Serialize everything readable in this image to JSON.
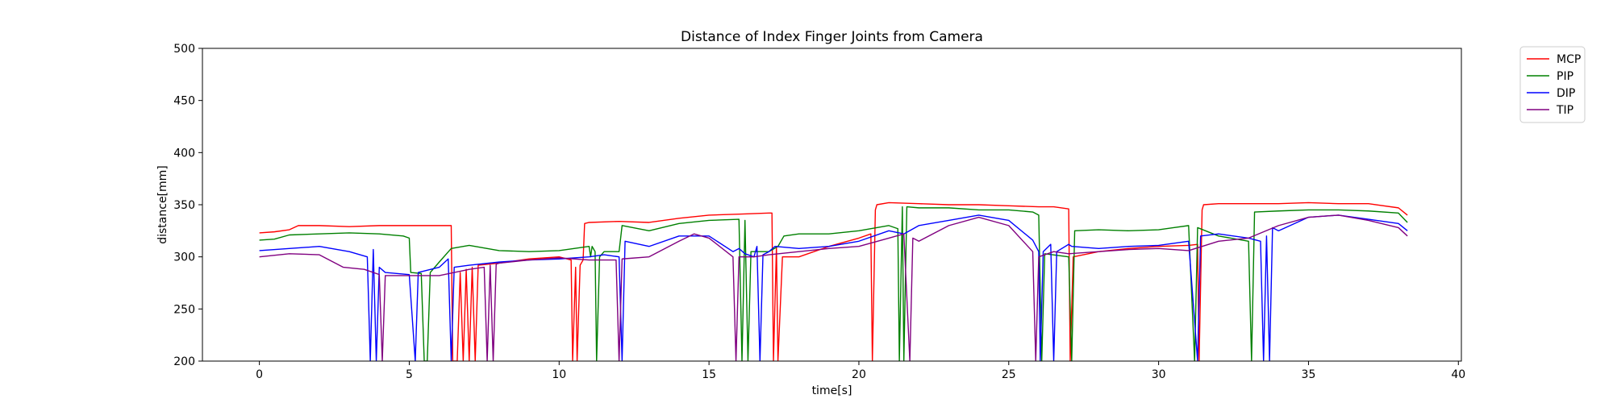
{
  "chart_data": {
    "type": "line",
    "title": "Distance of Index Finger Joints from Camera",
    "xlabel": "time[s]",
    "ylabel": "distance[mm]",
    "xlim": [
      -1.9,
      40.1
    ],
    "ylim": [
      200,
      500
    ],
    "xticks": [
      0,
      5,
      10,
      15,
      20,
      25,
      30,
      35,
      40
    ],
    "yticks": [
      200,
      250,
      300,
      350,
      400,
      450,
      500
    ],
    "grid": false,
    "legend_position": "outside-top-right",
    "series": [
      {
        "name": "MCP",
        "color": "#ff0000",
        "points": [
          [
            0,
            323
          ],
          [
            0.5,
            324
          ],
          [
            1,
            326
          ],
          [
            1.3,
            330
          ],
          [
            2,
            330
          ],
          [
            3,
            329
          ],
          [
            4,
            330
          ],
          [
            5,
            330
          ],
          [
            6,
            330
          ],
          [
            6.4,
            330
          ],
          [
            6.45,
            200
          ],
          [
            6.6,
            200
          ],
          [
            6.7,
            285
          ],
          [
            6.8,
            200
          ],
          [
            6.9,
            288
          ],
          [
            7.0,
            200
          ],
          [
            7.1,
            290
          ],
          [
            7.2,
            200
          ],
          [
            7.3,
            292
          ],
          [
            8,
            294
          ],
          [
            9,
            298
          ],
          [
            10,
            300
          ],
          [
            10.4,
            297
          ],
          [
            10.45,
            200
          ],
          [
            10.55,
            290
          ],
          [
            10.6,
            200
          ],
          [
            10.7,
            292
          ],
          [
            10.8,
            297
          ],
          [
            10.85,
            332
          ],
          [
            11,
            333
          ],
          [
            12,
            334
          ],
          [
            13,
            333
          ],
          [
            14,
            337
          ],
          [
            15,
            340
          ],
          [
            16,
            341
          ],
          [
            17,
            342
          ],
          [
            17.1,
            342
          ],
          [
            17.15,
            200
          ],
          [
            17.25,
            310
          ],
          [
            17.3,
            200
          ],
          [
            17.45,
            300
          ],
          [
            18,
            300
          ],
          [
            19,
            310
          ],
          [
            20,
            318
          ],
          [
            20.4,
            322
          ],
          [
            20.45,
            200
          ],
          [
            20.55,
            345
          ],
          [
            20.6,
            350
          ],
          [
            21,
            352
          ],
          [
            22,
            351
          ],
          [
            23,
            350
          ],
          [
            24,
            350
          ],
          [
            25,
            349
          ],
          [
            26,
            348
          ],
          [
            26.5,
            348
          ],
          [
            27,
            346
          ],
          [
            27.05,
            200
          ],
          [
            27.15,
            300
          ],
          [
            28,
            305
          ],
          [
            29,
            308
          ],
          [
            30,
            310
          ],
          [
            31,
            311
          ],
          [
            31.3,
            312
          ],
          [
            31.35,
            200
          ],
          [
            31.45,
            345
          ],
          [
            31.5,
            350
          ],
          [
            32,
            351
          ],
          [
            33,
            351
          ],
          [
            34,
            351
          ],
          [
            35,
            352
          ],
          [
            36,
            351
          ],
          [
            37,
            351
          ],
          [
            38,
            347
          ],
          [
            38.3,
            340
          ]
        ]
      },
      {
        "name": "PIP",
        "color": "#008000",
        "points": [
          [
            0,
            316
          ],
          [
            0.5,
            317
          ],
          [
            1,
            321
          ],
          [
            2,
            322
          ],
          [
            3,
            323
          ],
          [
            4,
            322
          ],
          [
            4.8,
            320
          ],
          [
            5.0,
            318
          ],
          [
            5.05,
            285
          ],
          [
            5.4,
            284
          ],
          [
            5.5,
            200
          ],
          [
            5.6,
            200
          ],
          [
            5.7,
            285
          ],
          [
            6.0,
            295
          ],
          [
            6.4,
            308
          ],
          [
            7,
            311
          ],
          [
            8,
            306
          ],
          [
            9,
            305
          ],
          [
            10,
            306
          ],
          [
            10.5,
            308
          ],
          [
            11,
            310
          ],
          [
            11.05,
            300
          ],
          [
            11.1,
            310
          ],
          [
            11.2,
            305
          ],
          [
            11.25,
            200
          ],
          [
            11.35,
            300
          ],
          [
            11.5,
            305
          ],
          [
            12,
            305
          ],
          [
            12.1,
            330
          ],
          [
            13,
            325
          ],
          [
            14,
            332
          ],
          [
            15,
            335
          ],
          [
            16,
            336
          ],
          [
            16.1,
            200
          ],
          [
            16.2,
            335
          ],
          [
            16.3,
            200
          ],
          [
            16.4,
            305
          ],
          [
            17,
            305
          ],
          [
            17.3,
            310
          ],
          [
            17.5,
            320
          ],
          [
            18,
            322
          ],
          [
            19,
            322
          ],
          [
            20,
            325
          ],
          [
            21,
            330
          ],
          [
            21.3,
            327
          ],
          [
            21.35,
            200
          ],
          [
            21.45,
            348
          ],
          [
            21.5,
            200
          ],
          [
            21.6,
            348
          ],
          [
            22,
            347
          ],
          [
            23,
            347
          ],
          [
            24,
            345
          ],
          [
            25,
            345
          ],
          [
            25.8,
            343
          ],
          [
            26,
            340
          ],
          [
            26.1,
            200
          ],
          [
            26.2,
            303
          ],
          [
            27,
            300
          ],
          [
            27.1,
            200
          ],
          [
            27.2,
            325
          ],
          [
            28,
            326
          ],
          [
            29,
            325
          ],
          [
            30,
            326
          ],
          [
            30.5,
            328
          ],
          [
            31,
            330
          ],
          [
            31.2,
            200
          ],
          [
            31.3,
            328
          ],
          [
            32,
            320
          ],
          [
            33,
            315
          ],
          [
            33.1,
            200
          ],
          [
            33.2,
            343
          ],
          [
            34,
            344
          ],
          [
            35,
            345
          ],
          [
            36,
            345
          ],
          [
            37,
            344
          ],
          [
            38,
            342
          ],
          [
            38.3,
            333
          ]
        ]
      },
      {
        "name": "DIP",
        "color": "#0000ff",
        "points": [
          [
            0,
            306
          ],
          [
            1,
            308
          ],
          [
            2,
            310
          ],
          [
            3,
            305
          ],
          [
            3.6,
            300
          ],
          [
            3.7,
            200
          ],
          [
            3.8,
            307
          ],
          [
            3.9,
            200
          ],
          [
            4.0,
            290
          ],
          [
            4.2,
            285
          ],
          [
            5,
            283
          ],
          [
            5.2,
            200
          ],
          [
            5.3,
            285
          ],
          [
            6,
            290
          ],
          [
            6.3,
            298
          ],
          [
            6.4,
            200
          ],
          [
            6.5,
            290
          ],
          [
            7,
            292
          ],
          [
            8,
            295
          ],
          [
            9,
            297
          ],
          [
            10,
            298
          ],
          [
            11,
            300
          ],
          [
            11.5,
            302
          ],
          [
            12,
            300
          ],
          [
            12.1,
            200
          ],
          [
            12.2,
            315
          ],
          [
            13,
            310
          ],
          [
            14,
            320
          ],
          [
            15,
            320
          ],
          [
            15.8,
            305
          ],
          [
            16,
            308
          ],
          [
            16.2,
            303
          ],
          [
            16.5,
            300
          ],
          [
            16.6,
            310
          ],
          [
            16.7,
            200
          ],
          [
            16.8,
            302
          ],
          [
            17,
            305
          ],
          [
            17.2,
            310
          ],
          [
            18,
            308
          ],
          [
            19,
            310
          ],
          [
            20,
            315
          ],
          [
            21,
            325
          ],
          [
            21.5,
            322
          ],
          [
            22,
            330
          ],
          [
            23,
            335
          ],
          [
            24,
            340
          ],
          [
            25,
            335
          ],
          [
            25.8,
            316
          ],
          [
            26,
            305
          ],
          [
            26.05,
            200
          ],
          [
            26.15,
            305
          ],
          [
            26.4,
            312
          ],
          [
            26.5,
            200
          ],
          [
            26.6,
            305
          ],
          [
            27,
            312
          ],
          [
            27.1,
            310
          ],
          [
            28,
            308
          ],
          [
            29,
            310
          ],
          [
            30,
            311
          ],
          [
            31,
            315
          ],
          [
            31.3,
            200
          ],
          [
            31.4,
            320
          ],
          [
            32,
            322
          ],
          [
            33,
            318
          ],
          [
            33.4,
            315
          ],
          [
            33.5,
            200
          ],
          [
            33.6,
            320
          ],
          [
            33.7,
            200
          ],
          [
            33.8,
            328
          ],
          [
            34,
            325
          ],
          [
            35,
            338
          ],
          [
            36,
            340
          ],
          [
            37,
            336
          ],
          [
            38,
            332
          ],
          [
            38.3,
            325
          ]
        ]
      },
      {
        "name": "TIP",
        "color": "#800080",
        "points": [
          [
            0,
            300
          ],
          [
            1,
            303
          ],
          [
            2,
            302
          ],
          [
            2.8,
            290
          ],
          [
            3.5,
            288
          ],
          [
            4.0,
            283
          ],
          [
            4.1,
            200
          ],
          [
            4.2,
            282
          ],
          [
            5,
            282
          ],
          [
            6,
            282
          ],
          [
            7,
            288
          ],
          [
            7.5,
            290
          ],
          [
            7.6,
            200
          ],
          [
            7.7,
            292
          ],
          [
            7.8,
            200
          ],
          [
            7.9,
            293
          ],
          [
            8,
            294
          ],
          [
            9,
            297
          ],
          [
            10,
            299
          ],
          [
            11,
            297
          ],
          [
            11.9,
            297
          ],
          [
            12,
            200
          ],
          [
            12.1,
            298
          ],
          [
            13,
            300
          ],
          [
            14,
            315
          ],
          [
            14.5,
            322
          ],
          [
            15,
            318
          ],
          [
            15.8,
            300
          ],
          [
            15.9,
            200
          ],
          [
            16.0,
            300
          ],
          [
            16.5,
            300
          ],
          [
            17,
            302
          ],
          [
            18,
            305
          ],
          [
            19,
            308
          ],
          [
            20,
            310
          ],
          [
            21,
            318
          ],
          [
            21.5,
            322
          ],
          [
            21.7,
            200
          ],
          [
            21.8,
            318
          ],
          [
            22,
            315
          ],
          [
            23,
            330
          ],
          [
            24,
            338
          ],
          [
            25,
            330
          ],
          [
            25.8,
            305
          ],
          [
            25.9,
            200
          ],
          [
            26.0,
            300
          ],
          [
            26.5,
            305
          ],
          [
            27,
            303
          ],
          [
            28,
            305
          ],
          [
            29,
            307
          ],
          [
            30,
            308
          ],
          [
            31,
            306
          ],
          [
            32,
            315
          ],
          [
            33,
            318
          ],
          [
            34,
            330
          ],
          [
            35,
            338
          ],
          [
            36,
            340
          ],
          [
            37,
            335
          ],
          [
            38,
            328
          ],
          [
            38.3,
            320
          ]
        ]
      }
    ]
  }
}
